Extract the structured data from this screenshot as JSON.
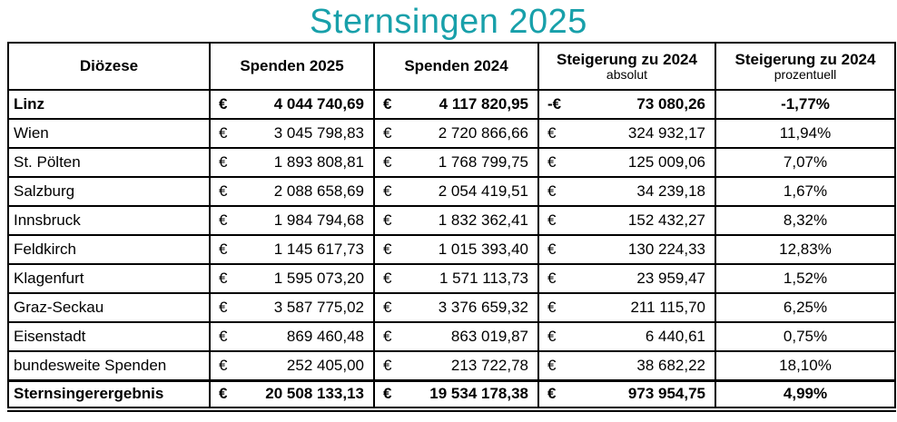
{
  "title": "Sternsingen 2025",
  "colors": {
    "title": "#18A0AA",
    "border": "#000000",
    "text": "#000000",
    "background": "#ffffff"
  },
  "table": {
    "headers": {
      "diocese": "Diözese",
      "spenden2025": "Spenden 2025",
      "spenden2024": "Spenden 2024",
      "steigerungAbsMain": "Steigerung zu 2024",
      "steigerungAbsSub": "absolut",
      "steigerungPctMain": "Steigerung zu 2024",
      "steigerungPctSub": "prozentuell"
    },
    "rows": [
      {
        "diocese": "Linz",
        "cur2025": "€",
        "v2025": "4 044 740,69",
        "cur2024": "€",
        "v2024": "4 117 820,95",
        "curAbs": "-€",
        "vAbs": "73 080,26",
        "pct": "-1,77%",
        "bold": true,
        "total": false
      },
      {
        "diocese": "Wien",
        "cur2025": "€",
        "v2025": "3 045 798,83",
        "cur2024": "€",
        "v2024": "2 720 866,66",
        "curAbs": "€",
        "vAbs": "324 932,17",
        "pct": "11,94%",
        "bold": false,
        "total": false
      },
      {
        "diocese": "St. Pölten",
        "cur2025": "€",
        "v2025": "1 893 808,81",
        "cur2024": "€",
        "v2024": "1 768 799,75",
        "curAbs": "€",
        "vAbs": "125 009,06",
        "pct": "7,07%",
        "bold": false,
        "total": false
      },
      {
        "diocese": "Salzburg",
        "cur2025": "€",
        "v2025": "2 088 658,69",
        "cur2024": "€",
        "v2024": "2 054 419,51",
        "curAbs": "€",
        "vAbs": "34 239,18",
        "pct": "1,67%",
        "bold": false,
        "total": false
      },
      {
        "diocese": "Innsbruck",
        "cur2025": "€",
        "v2025": "1 984 794,68",
        "cur2024": "€",
        "v2024": "1 832 362,41",
        "curAbs": "€",
        "vAbs": "152 432,27",
        "pct": "8,32%",
        "bold": false,
        "total": false
      },
      {
        "diocese": "Feldkirch",
        "cur2025": "€",
        "v2025": "1 145 617,73",
        "cur2024": "€",
        "v2024": "1 015 393,40",
        "curAbs": "€",
        "vAbs": "130 224,33",
        "pct": "12,83%",
        "bold": false,
        "total": false
      },
      {
        "diocese": "Klagenfurt",
        "cur2025": "€",
        "v2025": "1 595 073,20",
        "cur2024": "€",
        "v2024": "1 571 113,73",
        "curAbs": "€",
        "vAbs": "23 959,47",
        "pct": "1,52%",
        "bold": false,
        "total": false
      },
      {
        "diocese": "Graz-Seckau",
        "cur2025": "€",
        "v2025": "3 587 775,02",
        "cur2024": "€",
        "v2024": "3 376 659,32",
        "curAbs": "€",
        "vAbs": "211 115,70",
        "pct": "6,25%",
        "bold": false,
        "total": false
      },
      {
        "diocese": "Eisenstadt",
        "cur2025": "€",
        "v2025": "869 460,48",
        "cur2024": "€",
        "v2024": "863 019,87",
        "curAbs": "€",
        "vAbs": "6 440,61",
        "pct": "0,75%",
        "bold": false,
        "total": false
      },
      {
        "diocese": "bundesweite Spenden",
        "cur2025": "€",
        "v2025": "252 405,00",
        "cur2024": "€",
        "v2024": "213 722,78",
        "curAbs": "€",
        "vAbs": "38 682,22",
        "pct": "18,10%",
        "bold": false,
        "total": false
      },
      {
        "diocese": "Sternsingerergebnis",
        "cur2025": "€",
        "v2025": "20 508 133,13",
        "cur2024": "€",
        "v2024": "19 534 178,38",
        "curAbs": "€",
        "vAbs": "973 954,75",
        "pct": "4,99%",
        "bold": true,
        "total": true
      }
    ]
  }
}
